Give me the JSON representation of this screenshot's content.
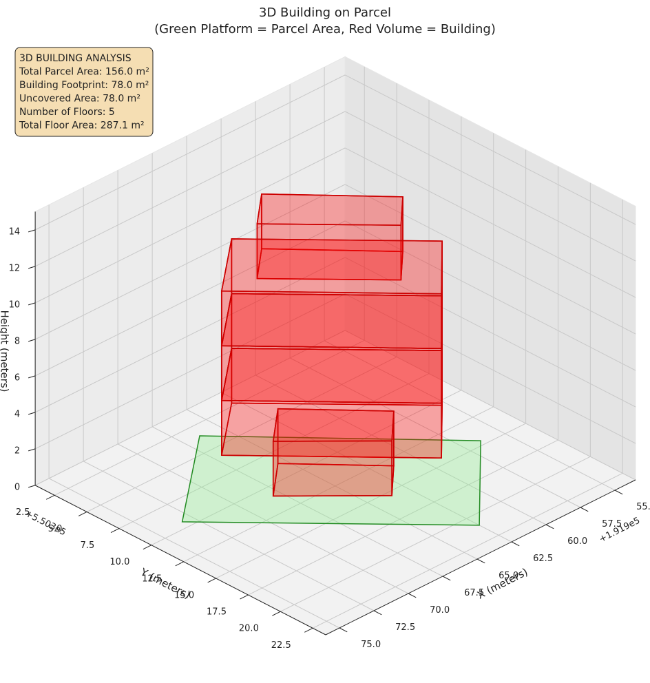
{
  "chart_data": {
    "type": "3d-box",
    "title": "3D Building on Parcel",
    "subtitle": "(Green Platform = Parcel Area, Red Volume = Building)",
    "annotation": [
      "3D BUILDING ANALYSIS",
      "Total Parcel Area: 156.0 m²",
      "Building Footprint: 78.0 m²",
      "Uncovered Area: 78.0 m²",
      "Number of Floors: 5",
      "Total Floor Area: 287.1 m²"
    ],
    "xlabel": "X (meters)",
    "ylabel": "Y (meters)",
    "zlabel": "Height (meters)",
    "x_offset": "+1.919e5",
    "y_offset": "+5.503e5",
    "xlim": [
      53.5,
      76
    ],
    "ylim": [
      1,
      23.5
    ],
    "zlim": [
      0,
      15
    ],
    "xticks": [
      {
        "value": 55,
        "label": "55.0"
      },
      57.5,
      {
        "value": 60,
        "label": "60.0"
      },
      62.5,
      {
        "value": 65,
        "label": "65.0"
      },
      67.5,
      {
        "value": 70,
        "label": "70.0"
      },
      72.5,
      {
        "value": 75,
        "label": "75.0"
      }
    ],
    "yticks": [
      2.5,
      {
        "value": 5,
        "label": "5.0"
      },
      7.5,
      {
        "value": 10,
        "label": "10.0"
      },
      12.5,
      {
        "value": 15,
        "label": "15.0"
      },
      17.5,
      {
        "value": 20,
        "label": "20.0"
      },
      22.5
    ],
    "zticks": [
      0,
      2,
      4,
      6,
      8,
      10,
      12,
      14
    ],
    "grid": true,
    "parcel": {
      "color": "#90ee90",
      "edge_color": "#228b22",
      "x": [
        66.4,
        56.4,
        62.5,
        73.2
      ],
      "y": [
        3.5,
        14.6,
        21,
        9.4
      ],
      "z": 0
    },
    "building_color": "#ff0000",
    "building_edge_color": "#cc0000",
    "boxes": [
      {
        "x": [
          66.4,
          61.4,
          63.5,
          68.7
        ],
        "y": [
          8.3,
          13.9,
          16,
          10.4
        ],
        "z": [
          12,
          15
        ]
      },
      {
        "x": [
          66.8,
          59.2,
          63,
          70.9
        ],
        "y": [
          6.4,
          14.6,
          18.6,
          10
        ],
        "z": [
          9,
          12
        ]
      },
      {
        "x": [
          66.8,
          59.2,
          63,
          70.9
        ],
        "y": [
          6.4,
          14.6,
          18.6,
          10
        ],
        "z": [
          6,
          9
        ]
      },
      {
        "x": [
          66.8,
          59.2,
          63,
          70.9
        ],
        "y": [
          6.4,
          14.6,
          18.6,
          10
        ],
        "z": [
          3,
          6
        ]
      },
      {
        "x": [
          65.5,
          61.4,
          63.6,
          68
        ],
        "y": [
          8.6,
          13.2,
          15.4,
          10.9
        ],
        "z": [
          0,
          3
        ]
      }
    ]
  }
}
